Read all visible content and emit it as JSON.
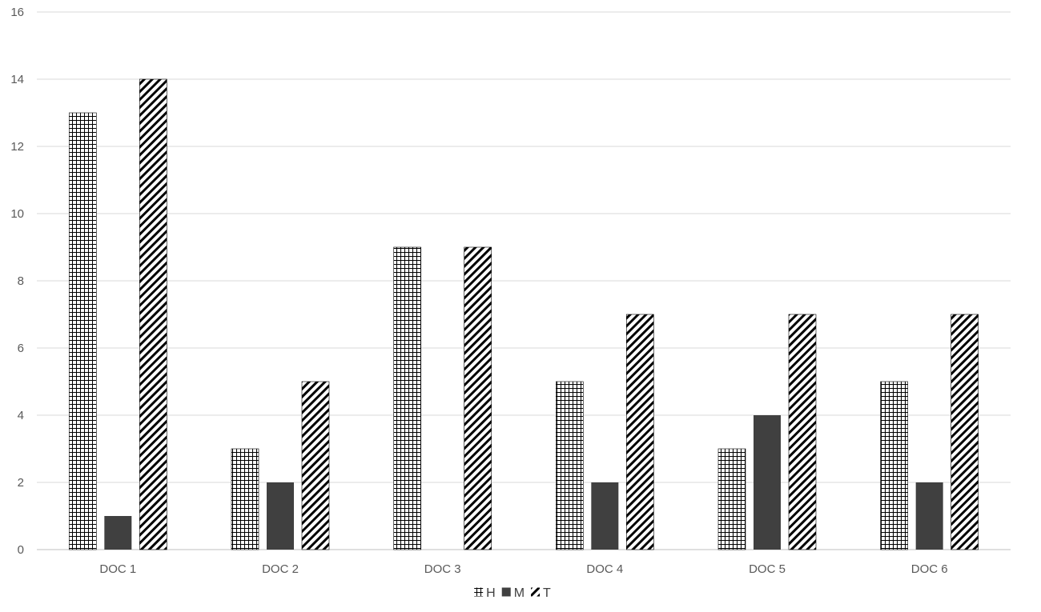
{
  "chart_data": {
    "type": "bar",
    "title": "",
    "xlabel": "",
    "ylabel": "",
    "categories": [
      "DOC 1",
      "DOC 2",
      "DOC 3",
      "DOC 4",
      "DOC 5",
      "DOC 6"
    ],
    "series": [
      {
        "name": "H",
        "values": [
          13,
          3,
          9,
          5,
          3,
          5
        ],
        "pattern": "grid",
        "color": "#000000"
      },
      {
        "name": "M",
        "values": [
          1,
          2,
          0,
          2,
          4,
          2
        ],
        "pattern": "solid",
        "color": "#404040"
      },
      {
        "name": "T",
        "values": [
          14,
          5,
          9,
          7,
          7,
          7
        ],
        "pattern": "diagonal",
        "color": "#000000"
      }
    ],
    "ylim": [
      0,
      16
    ],
    "yticks": [
      0,
      2,
      4,
      6,
      8,
      10,
      12,
      14,
      16
    ],
    "grid": true,
    "gridline_color": "#d9d9d9",
    "legend_position": "bottom"
  }
}
